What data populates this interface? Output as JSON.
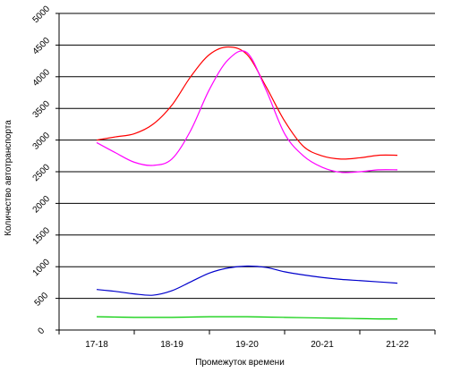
{
  "chart_data": {
    "type": "line",
    "title": "",
    "xlabel": "Промежуток времени",
    "ylabel": "Количество автотранспорта",
    "categories": [
      "17-18",
      "18-19",
      "19-20",
      "20-21",
      "21-22"
    ],
    "y_ticks": [
      "0",
      "500",
      "1000",
      "1500",
      "2000",
      "2500",
      "3000",
      "3500",
      "4000",
      "4500",
      "5000"
    ],
    "ylim": [
      0,
      5000
    ],
    "grid": "horizontal",
    "legend": "none",
    "x": [
      0,
      0.25,
      0.5,
      0.75,
      1,
      1.25,
      1.5,
      1.75,
      2,
      2.25,
      2.5,
      2.75,
      3,
      3.25,
      3.5,
      3.75,
      4
    ],
    "series": [
      {
        "color": "#ff0000",
        "values": [
          3000,
          3050,
          3100,
          3250,
          3550,
          4000,
          4350,
          4470,
          4350,
          3850,
          3300,
          2900,
          2750,
          2700,
          2720,
          2760,
          2760
        ]
      },
      {
        "color": "#ff00ff",
        "values": [
          2960,
          2800,
          2650,
          2600,
          2700,
          3150,
          3800,
          4270,
          4380,
          3800,
          3100,
          2750,
          2570,
          2490,
          2500,
          2530,
          2530
        ]
      },
      {
        "color": "#0000cc",
        "values": [
          640,
          610,
          570,
          550,
          620,
          760,
          900,
          980,
          1010,
          990,
          920,
          870,
          830,
          800,
          780,
          760,
          740
        ]
      },
      {
        "color": "#00cc00",
        "values": [
          210,
          205,
          200,
          200,
          200,
          205,
          210,
          210,
          210,
          205,
          200,
          195,
          190,
          185,
          180,
          175,
          175
        ]
      }
    ]
  }
}
